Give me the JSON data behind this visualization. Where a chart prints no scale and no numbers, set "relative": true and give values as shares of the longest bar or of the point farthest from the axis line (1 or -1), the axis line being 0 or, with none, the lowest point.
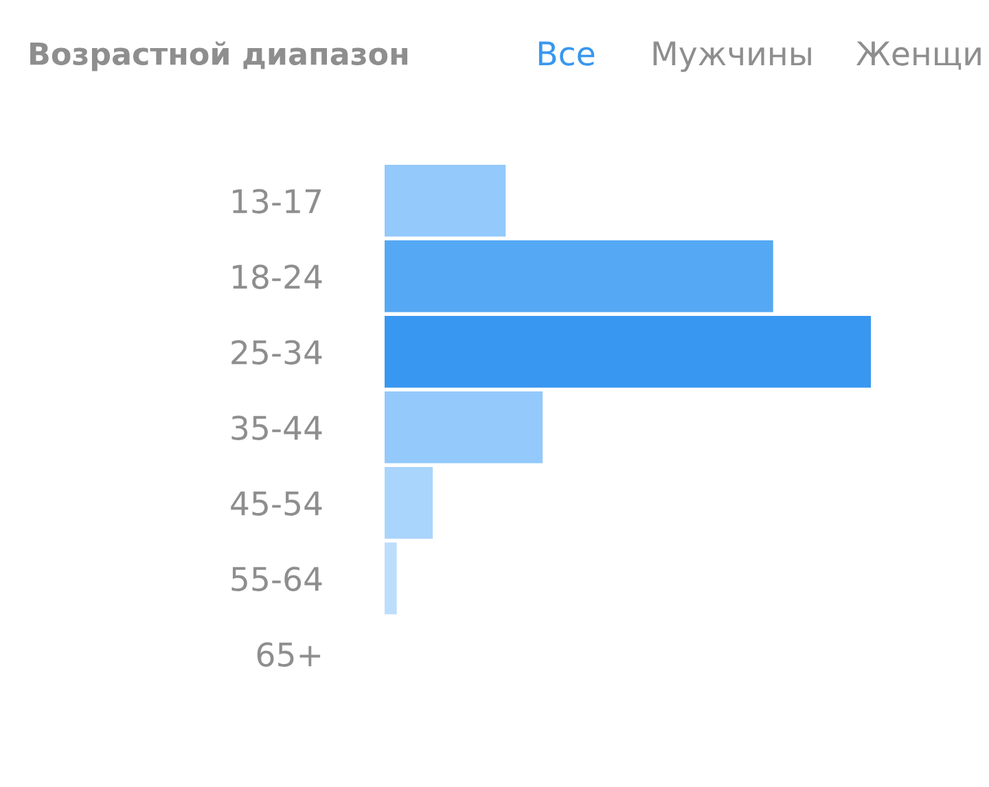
{
  "chart_data": {
    "type": "bar",
    "orientation": "horizontal",
    "relative": true,
    "title": "Возрастной диапазон",
    "annotations": [
      "Все",
      "Мужчины",
      "Женщи"
    ],
    "categories": [
      "13-17",
      "18-24",
      "25-34",
      "35-44",
      "45-54",
      "55-64",
      "65+"
    ],
    "values": [
      0.249,
      0.799,
      1,
      0.325,
      0.099,
      0.025,
      0
    ],
    "colors": [
      "#93c9fb",
      "#55a8f3",
      "#3897f0",
      "#93c9fb",
      "#a9d4fb",
      "#bcdefc",
      "#bcdefc"
    ],
    "tick_labels": "y",
    "grid": false,
    "legend": false
  }
}
